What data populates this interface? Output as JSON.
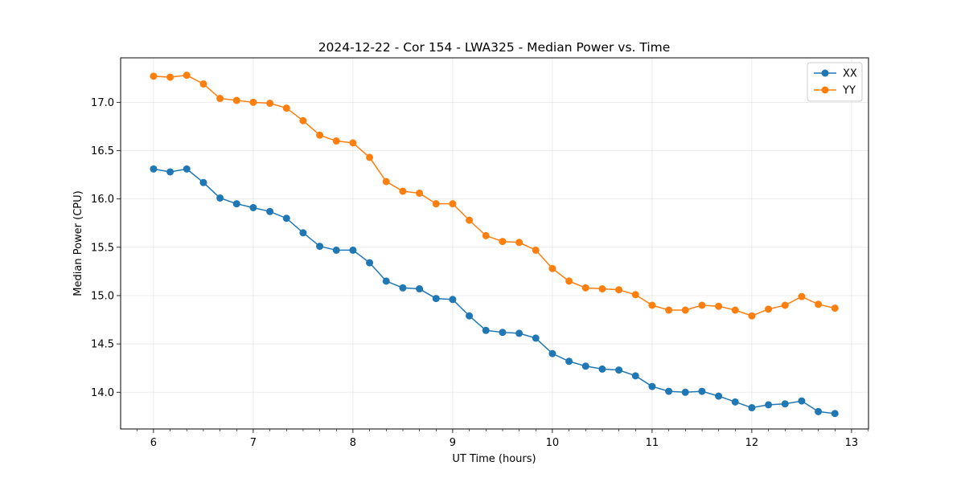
{
  "chart_data": {
    "type": "line",
    "title": "2024-12-22 - Cor 154 - LWA325 - Median Power vs. Time",
    "xlabel": "UT Time (hours)",
    "ylabel": "Median Power (CPU)",
    "xlim": [
      5.67,
      13.17
    ],
    "ylim": [
      13.62,
      17.46
    ],
    "xticks": [
      6,
      7,
      8,
      9,
      10,
      11,
      12,
      13
    ],
    "xtick_labels": [
      "6",
      "7",
      "8",
      "9",
      "10",
      "11",
      "12",
      "13"
    ],
    "yticks": [
      14.0,
      14.5,
      15.0,
      15.5,
      16.0,
      16.5,
      17.0
    ],
    "ytick_labels": [
      "14.0",
      "14.5",
      "15.0",
      "15.5",
      "16.0",
      "16.5",
      "17.0"
    ],
    "x_minor_step": 0.1667,
    "grid": true,
    "legend_position": "top-right",
    "x": [
      6.0,
      6.1667,
      6.3333,
      6.5,
      6.6667,
      6.8333,
      7.0,
      7.1667,
      7.3333,
      7.5,
      7.6667,
      7.8333,
      8.0,
      8.1667,
      8.3333,
      8.5,
      8.6667,
      8.8333,
      9.0,
      9.1667,
      9.3333,
      9.5,
      9.6667,
      9.8333,
      10.0,
      10.1667,
      10.3333,
      10.5,
      10.6667,
      10.8333,
      11.0,
      11.1667,
      11.3333,
      11.5,
      11.6667,
      11.8333,
      12.0,
      12.1667,
      12.3333,
      12.5,
      12.6667,
      12.8333
    ],
    "series": [
      {
        "name": "XX",
        "color": "#1f77b4",
        "values": [
          16.31,
          16.28,
          16.31,
          16.17,
          16.01,
          15.95,
          15.91,
          15.87,
          15.8,
          15.65,
          15.51,
          15.47,
          15.47,
          15.34,
          15.15,
          15.08,
          15.07,
          14.97,
          14.96,
          14.79,
          14.64,
          14.62,
          14.61,
          14.56,
          14.4,
          14.32,
          14.27,
          14.24,
          14.23,
          14.17,
          14.06,
          14.01,
          14.0,
          14.01,
          13.96,
          13.9,
          13.84,
          13.87,
          13.88,
          13.91,
          13.8,
          13.78
        ]
      },
      {
        "name": "YY",
        "color": "#ff7f0e",
        "values": [
          17.27,
          17.26,
          17.28,
          17.19,
          17.04,
          17.02,
          17.0,
          16.99,
          16.94,
          16.81,
          16.66,
          16.6,
          16.58,
          16.43,
          16.18,
          16.08,
          16.06,
          15.95,
          15.95,
          15.78,
          15.62,
          15.56,
          15.55,
          15.47,
          15.28,
          15.15,
          15.08,
          15.07,
          15.06,
          15.01,
          14.9,
          14.85,
          14.85,
          14.9,
          14.89,
          14.85,
          14.79,
          14.86,
          14.9,
          14.99,
          14.91,
          14.87
        ]
      }
    ]
  }
}
